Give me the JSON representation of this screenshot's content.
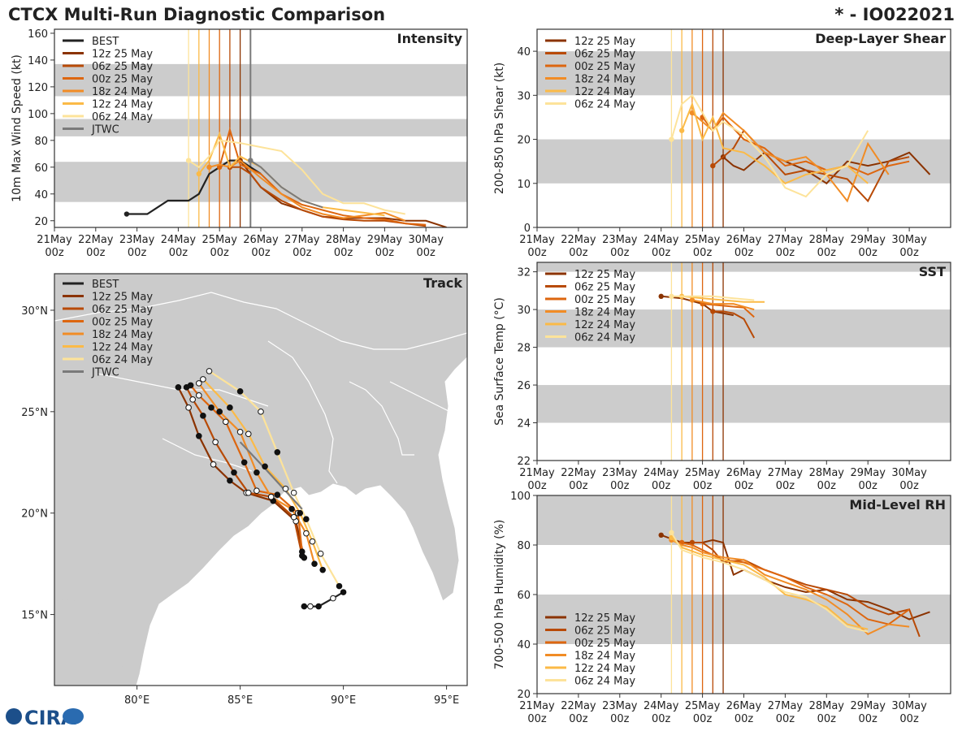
{
  "header": {
    "title": "CTCX Multi-Run Diagnostic Comparison",
    "storm_id": "* - IO022021",
    "logo_text": "CIRA"
  },
  "runs": [
    {
      "name": "12z 25 May",
      "color": "#8b3300"
    },
    {
      "name": "06z 25 May",
      "color": "#b84a06"
    },
    {
      "name": "00z 25 May",
      "color": "#dd660f"
    },
    {
      "name": "18z 24 May",
      "color": "#f18c25"
    },
    {
      "name": "12z 24 May",
      "color": "#fbba47"
    },
    {
      "name": "06z 24 May",
      "color": "#fde39a"
    }
  ],
  "best_color": "#222222",
  "jtwc_color": "#7a7a7a",
  "date_ticks": [
    "21May\n00z",
    "22May\n00z",
    "23May\n00z",
    "24May\n00z",
    "25May\n00z",
    "26May\n00z",
    "27May\n00z",
    "28May\n00z",
    "29May\n00z",
    "30May\n00z"
  ],
  "chart_data": [
    {
      "id": "intensity",
      "type": "line",
      "title": "Intensity",
      "ylabel": "10m Max Wind Speed (kt)",
      "xlabel": "",
      "ylim": [
        15,
        163
      ],
      "yticks": [
        20,
        40,
        60,
        80,
        100,
        120,
        140,
        160
      ],
      "shaded_bands": [
        [
          34,
          64
        ],
        [
          83,
          96
        ],
        [
          113,
          137
        ]
      ],
      "legend": [
        "BEST",
        "12z 25 May",
        "06z 25 May",
        "00z 25 May",
        "18z 24 May",
        "12z 24 May",
        "06z 24 May",
        "JTWC"
      ],
      "init_lines_days": [
        3.25,
        3.5,
        3.75,
        4.0,
        4.25,
        4.5
      ],
      "jtwc_line_day": 4.75,
      "series": [
        {
          "name": "BEST",
          "x": [
            1.75,
            2.25,
            2.75,
            3.25,
            3.5,
            3.75,
            4.0,
            4.25,
            4.5,
            4.75,
            5.0
          ],
          "values": [
            25,
            25,
            35,
            35,
            40,
            55,
            60,
            65,
            65,
            60,
            55
          ]
        },
        {
          "name": "12z 25 May",
          "x": [
            4.5,
            4.75,
            5.0,
            5.5,
            6.0,
            6.5,
            7.0,
            7.5,
            8.0,
            8.5,
            9.0,
            9.5
          ],
          "values": [
            65,
            55,
            45,
            33,
            28,
            23,
            22,
            22,
            22,
            20,
            20,
            15
          ]
        },
        {
          "name": "06z 25 May",
          "x": [
            4.25,
            4.5,
            4.75,
            5.0,
            5.5,
            6.0,
            6.5,
            7.0,
            7.5,
            8.0,
            8.5,
            9.0
          ],
          "values": [
            60,
            60,
            55,
            45,
            35,
            28,
            23,
            21,
            20,
            20,
            18,
            16
          ]
        },
        {
          "name": "00z 25 May",
          "x": [
            4.0,
            4.25,
            4.5,
            5.0,
            5.5,
            6.0,
            6.5,
            7.0,
            7.5,
            8.0,
            8.5,
            9.0
          ],
          "values": [
            60,
            88,
            62,
            55,
            40,
            32,
            28,
            24,
            22,
            21,
            18,
            17
          ]
        },
        {
          "name": "18z 24 May",
          "x": [
            3.75,
            4.0,
            4.25,
            4.5,
            5.0,
            5.5,
            6.0,
            6.5,
            7.0,
            7.5,
            8.0,
            8.5
          ],
          "values": [
            60,
            62,
            60,
            65,
            52,
            40,
            30,
            25,
            22,
            24,
            26,
            20
          ]
        },
        {
          "name": "12z 24 May",
          "x": [
            3.5,
            3.75,
            4.0,
            4.25,
            4.5,
            5.0,
            5.5,
            6.0,
            6.5,
            7.0,
            7.5,
            8.0
          ],
          "values": [
            55,
            65,
            85,
            60,
            68,
            60,
            45,
            35,
            30,
            28,
            26,
            24
          ]
        },
        {
          "name": "06z 24 May",
          "x": [
            3.25,
            3.5,
            3.75,
            4.0,
            4.5,
            5.0,
            5.5,
            6.0,
            6.5,
            7.0,
            7.5,
            8.0,
            8.5
          ],
          "values": [
            65,
            60,
            68,
            80,
            78,
            75,
            72,
            58,
            40,
            33,
            33,
            28,
            25
          ]
        },
        {
          "name": "JTWC",
          "x": [
            4.75,
            5.0,
            5.5,
            6.0,
            6.5
          ],
          "values": [
            65,
            60,
            45,
            35,
            30
          ]
        }
      ]
    },
    {
      "id": "shear",
      "type": "line",
      "title": "Deep-Layer Shear",
      "ylabel": "200-850 hPa Shear (kt)",
      "xlabel": "",
      "ylim": [
        0,
        45
      ],
      "yticks": [
        0,
        10,
        20,
        30,
        40
      ],
      "shaded_bands": [
        [
          10,
          20
        ],
        [
          30,
          40
        ]
      ],
      "legend": [
        "12z 25 May",
        "06z 25 May",
        "00z 25 May",
        "18z 24 May",
        "12z 24 May",
        "06z 24 May"
      ],
      "init_lines_days": [
        3.25,
        3.5,
        3.75,
        4.0,
        4.25,
        4.5
      ],
      "series": [
        {
          "name": "12z 25 May",
          "x": [
            4.5,
            4.75,
            5.0,
            5.5,
            6.0,
            6.5,
            7.0,
            7.5,
            8.0,
            8.5,
            9.0,
            9.5
          ],
          "values": [
            16,
            14,
            13,
            17,
            15,
            13,
            10,
            15,
            14,
            15,
            17,
            12
          ]
        },
        {
          "name": "06z 25 May",
          "x": [
            4.25,
            4.5,
            4.75,
            5.0,
            5.5,
            6.0,
            6.5,
            7.0,
            7.5,
            8.0,
            8.5,
            9.0
          ],
          "values": [
            14,
            16,
            18,
            22,
            17,
            12,
            13,
            12,
            11,
            6,
            15,
            16
          ]
        },
        {
          "name": "00z 25 May",
          "x": [
            4.0,
            4.25,
            4.5,
            5.0,
            5.5,
            6.0,
            6.5,
            7.0,
            7.5,
            8.0,
            8.5,
            9.0
          ],
          "values": [
            25,
            22,
            25,
            20,
            18,
            14,
            15,
            13,
            14,
            12,
            14,
            15
          ]
        },
        {
          "name": "18z 24 May",
          "x": [
            3.75,
            4.0,
            4.25,
            4.5,
            5.0,
            5.5,
            6.0,
            6.5,
            7.0,
            7.5,
            8.0,
            8.5
          ],
          "values": [
            26,
            24,
            22,
            26,
            22,
            17,
            15,
            16,
            12,
            6,
            19,
            12
          ]
        },
        {
          "name": "12z 24 May",
          "x": [
            3.5,
            3.75,
            4.0,
            4.25,
            4.5,
            5.0,
            5.5,
            6.0,
            6.5,
            7.0,
            7.5,
            8.0
          ],
          "values": [
            22,
            28,
            20,
            25,
            18,
            17,
            14,
            10,
            12,
            13,
            14,
            10
          ]
        },
        {
          "name": "06z 24 May",
          "x": [
            3.25,
            3.5,
            3.75,
            4.0,
            4.25,
            4.5,
            5.0,
            5.5,
            6.0,
            6.5,
            7.0,
            7.5,
            8.0
          ],
          "values": [
            20,
            28,
            30,
            26,
            22,
            24,
            21,
            16,
            9,
            7,
            12,
            14,
            22
          ]
        }
      ]
    },
    {
      "id": "sst",
      "type": "line",
      "title": "SST",
      "ylabel": "Sea Surface Temp (°C)",
      "xlabel": "",
      "ylim": [
        22,
        32.5
      ],
      "yticks": [
        22,
        24,
        26,
        28,
        30,
        32
      ],
      "shaded_bands": [
        [
          24,
          26
        ],
        [
          28,
          30
        ],
        [
          32,
          32.5
        ]
      ],
      "legend": [
        "12z 25 May",
        "06z 25 May",
        "00z 25 May",
        "18z 24 May",
        "12z 24 May",
        "06z 24 May"
      ],
      "init_lines_days": [
        3.25,
        3.5,
        3.75,
        4.0,
        4.25,
        4.5
      ],
      "series": [
        {
          "name": "12z 25 May",
          "x": [
            3.0,
            3.5,
            4.0,
            4.25,
            4.5,
            4.75
          ],
          "values": [
            30.7,
            30.6,
            30.3,
            29.9,
            29.8,
            29.7
          ]
        },
        {
          "name": "06z 25 May",
          "x": [
            4.25,
            4.5,
            4.75,
            5.0,
            5.25
          ],
          "values": [
            29.9,
            29.9,
            29.8,
            29.5,
            28.5
          ]
        },
        {
          "name": "00z 25 May",
          "x": [
            4.0,
            4.5,
            5.0,
            5.25
          ],
          "values": [
            30.3,
            30.2,
            30.1,
            29.6
          ]
        },
        {
          "name": "18z 24 May",
          "x": [
            3.75,
            4.25,
            4.75,
            5.25
          ],
          "values": [
            30.5,
            30.3,
            30.3,
            30.0
          ]
        },
        {
          "name": "12z 24 May",
          "x": [
            3.5,
            4.0,
            4.5,
            5.0,
            5.5
          ],
          "values": [
            30.7,
            30.6,
            30.5,
            30.4,
            30.4
          ]
        },
        {
          "name": "06z 24 May",
          "x": [
            3.25,
            3.75,
            4.25,
            4.75,
            5.25
          ],
          "values": [
            30.7,
            30.7,
            30.7,
            30.6,
            30.5
          ]
        }
      ]
    },
    {
      "id": "rh",
      "type": "line",
      "title": "Mid-Level RH",
      "ylabel": "700-500 hPa Humidity (%)",
      "xlabel": "",
      "ylim": [
        20,
        100
      ],
      "yticks": [
        20,
        40,
        60,
        80,
        100
      ],
      "shaded_bands": [
        [
          40,
          60
        ],
        [
          80,
          100
        ]
      ],
      "legend": [
        "12z 25 May",
        "06z 25 May",
        "00z 25 May",
        "18z 24 May",
        "12z 24 May",
        "06z 24 May"
      ],
      "init_lines_days": [
        3.25,
        3.5,
        3.75,
        4.0,
        4.25,
        4.5
      ],
      "series": [
        {
          "name": "12z 25 May",
          "x": [
            3.0,
            3.5,
            4.0,
            4.25,
            4.5,
            4.75,
            5.0,
            5.5,
            6.0,
            6.5,
            7.0,
            7.5,
            8.0,
            8.5,
            9.0,
            9.5
          ],
          "values": [
            84,
            81,
            81,
            82,
            81,
            68,
            70,
            66,
            63,
            61,
            62,
            58,
            57,
            54,
            50,
            53
          ]
        },
        {
          "name": "06z 25 May",
          "x": [
            3.75,
            4.0,
            4.25,
            4.5,
            5.0,
            5.5,
            6.0,
            6.5,
            7.0,
            7.5,
            8.0,
            8.5,
            9.0,
            9.25
          ],
          "values": [
            81,
            81,
            78,
            73,
            74,
            70,
            67,
            64,
            62,
            60,
            55,
            52,
            54,
            43
          ]
        },
        {
          "name": "00z 25 May",
          "x": [
            3.5,
            3.75,
            4.0,
            4.5,
            5.0,
            5.5,
            6.0,
            6.5,
            7.0,
            7.5,
            8.0,
            8.5,
            9.0
          ],
          "values": [
            81,
            80,
            78,
            74,
            73,
            70,
            67,
            63,
            60,
            56,
            50,
            48,
            54
          ]
        },
        {
          "name": "18z 24 May",
          "x": [
            3.25,
            3.5,
            3.75,
            4.0,
            4.5,
            5.0,
            5.5,
            6.0,
            6.5,
            7.0,
            7.5,
            8.0,
            8.5,
            9.0
          ],
          "values": [
            82,
            80,
            79,
            77,
            75,
            74,
            68,
            65,
            62,
            58,
            52,
            44,
            48,
            47
          ]
        },
        {
          "name": "12z 24 May",
          "x": [
            3.25,
            3.5,
            4.0,
            4.5,
            5.0,
            5.5,
            6.0,
            6.5,
            7.0,
            7.5,
            8.0
          ],
          "values": [
            83,
            79,
            76,
            74,
            72,
            67,
            60,
            58,
            55,
            48,
            46
          ]
        },
        {
          "name": "06z 24 May",
          "x": [
            3.25,
            3.5,
            4.0,
            4.5,
            5.0,
            5.5,
            6.0,
            6.5,
            7.0,
            7.5,
            8.0
          ],
          "values": [
            85,
            78,
            75,
            73,
            70,
            66,
            61,
            59,
            54,
            47,
            45
          ]
        }
      ]
    },
    {
      "id": "track",
      "type": "scatter",
      "title": "Track",
      "xlabel": "",
      "ylabel": "",
      "xlim": [
        76,
        96
      ],
      "ylim": [
        11.5,
        31.8
      ],
      "xticks": [
        80,
        85,
        90,
        95
      ],
      "xtick_labels": [
        "80°E",
        "85°E",
        "90°E",
        "95°E"
      ],
      "yticks": [
        15,
        20,
        25,
        30
      ],
      "ytick_labels": [
        "15°N",
        "20°N",
        "25°N",
        "30°N"
      ],
      "legend": [
        "BEST",
        "12z 25 May",
        "06z 25 May",
        "00z 25 May",
        "18z 24 May",
        "12z 24 May",
        "06z 24 May",
        "JTWC"
      ],
      "series": [
        {
          "name": "BEST",
          "lon": [
            88.1,
            88.4,
            88.8,
            89.5,
            90.0
          ],
          "lat": [
            15.4,
            15.4,
            15.4,
            15.8,
            16.1
          ]
        },
        {
          "name": "12z 25 May",
          "lon": [
            88.1,
            87.7,
            86.6,
            85.3,
            84.5,
            83.7,
            83.0,
            82.5,
            82.0
          ],
          "lat": [
            17.8,
            19.6,
            20.6,
            21.0,
            21.6,
            22.4,
            23.8,
            25.2,
            26.2
          ]
        },
        {
          "name": "06z 25 May",
          "lon": [
            88.0,
            87.6,
            86.5,
            85.4,
            84.7,
            83.8,
            83.2,
            82.7,
            82.4
          ],
          "lat": [
            17.9,
            19.8,
            20.8,
            21.0,
            22.0,
            23.5,
            24.8,
            25.6,
            26.2
          ]
        },
        {
          "name": "00z 25 May",
          "lon": [
            88.0,
            87.8,
            86.8,
            85.8,
            85.2,
            84.3,
            83.6,
            83.0,
            82.6
          ],
          "lat": [
            18.1,
            20.0,
            20.9,
            21.1,
            22.5,
            24.5,
            25.2,
            25.8,
            26.3
          ]
        },
        {
          "name": "18z 24 May",
          "lon": [
            88.6,
            88.2,
            87.5,
            86.5,
            85.8,
            85.0,
            84.0,
            83.0
          ],
          "lat": [
            17.5,
            19.0,
            20.2,
            20.8,
            22.0,
            24.0,
            25.0,
            26.4
          ]
        },
        {
          "name": "12z 24 May",
          "lon": [
            89.0,
            88.5,
            87.9,
            87.2,
            86.2,
            85.4,
            84.5,
            83.2
          ],
          "lat": [
            17.2,
            18.6,
            20.0,
            21.2,
            22.3,
            23.9,
            25.2,
            26.6
          ]
        },
        {
          "name": "06z 24 May",
          "lon": [
            89.8,
            88.9,
            88.2,
            87.6,
            86.8,
            86.0,
            85.0,
            83.5
          ],
          "lat": [
            16.4,
            18.0,
            19.7,
            21.0,
            23.0,
            25.0,
            26.0,
            27.0
          ]
        },
        {
          "name": "JTWC",
          "lon": [
            85.0,
            86.2,
            87.1,
            88.0
          ],
          "lat": [
            23.5,
            22.2,
            21.2,
            20.2
          ]
        }
      ]
    }
  ]
}
